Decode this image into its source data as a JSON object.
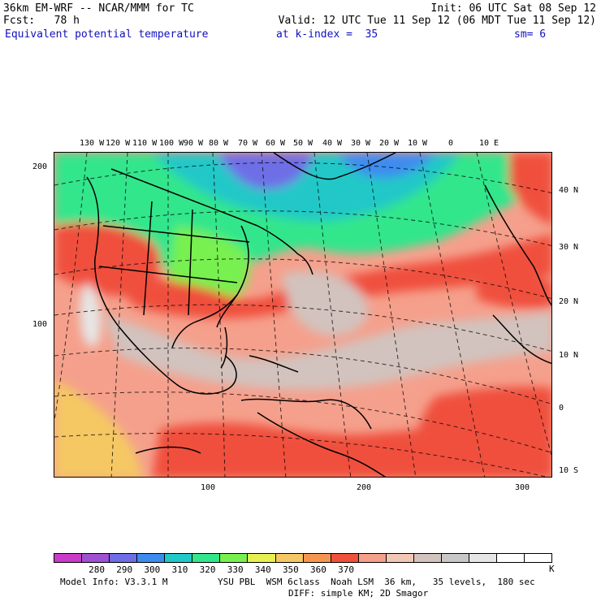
{
  "header": {
    "line1_left": "36km EM-WRF -- NCAR/MMM for TC",
    "line1_right": "Init: 06 UTC Sat 08 Sep 12",
    "line2_left": "Fcst:   78 h",
    "line2_right": "Valid: 12 UTC Tue 11 Sep 12 (06 MDT Tue 11 Sep 12)",
    "line3_field": "Equivalent potential temperature",
    "line3_level": "at k-index =  35",
    "line3_sm": "sm= 6"
  },
  "map": {
    "top_lon_labels": [
      "130 W",
      "120 W",
      "110 W",
      "100 W",
      "90 W",
      "80 W",
      "70 W",
      "60 W",
      "50 W",
      "40 W",
      "30 W",
      "20 W",
      "10 W",
      "0",
      "10 E"
    ],
    "right_lat_labels": [
      "40 N",
      "30 N",
      "20 N",
      "10 N",
      "0",
      "10 S"
    ],
    "left_grid_labels": [
      "200",
      "100"
    ],
    "bottom_grid_labels": [
      "100",
      "200",
      "300"
    ]
  },
  "colorbar": {
    "units": "K",
    "labels": [
      "280",
      "290",
      "300",
      "310",
      "320",
      "330",
      "340",
      "350",
      "360",
      "370"
    ],
    "colors": [
      "#c83cc8",
      "#a050d2",
      "#6e6ee6",
      "#3c8cf0",
      "#20c8c8",
      "#32e68c",
      "#78f050",
      "#e6f050",
      "#f5c864",
      "#f59650",
      "#f0503c",
      "#f5a08c",
      "#f0c8b4",
      "#d2c3be",
      "#c8c8c8",
      "#e6e6e6",
      "#ffffff",
      "#ffffff"
    ]
  },
  "footer": {
    "line1_left": "Model Info: V3.3.1 M",
    "line1_right": "YSU PBL  WSM 6class  Noah LSM  36 km,   35 levels,  180 sec",
    "line2_right": "DIFF: simple KM; 2D Smagor"
  }
}
